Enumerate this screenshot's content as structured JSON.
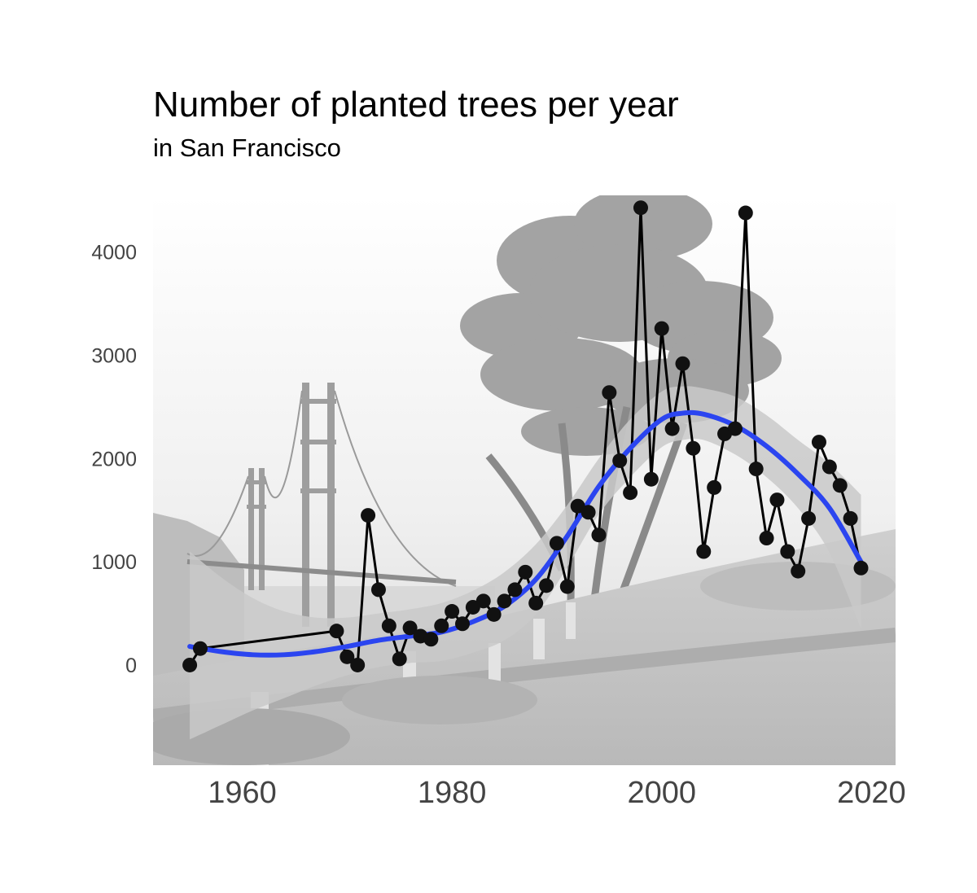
{
  "chart_data": {
    "type": "line",
    "title": "Number of planted trees per year",
    "subtitle": "in San Francisco",
    "xlabel": "",
    "ylabel": "",
    "xlim": [
      1951.5,
      2022.3
    ],
    "ylim": [
      -970,
      4550
    ],
    "x_ticks": [
      1960,
      1980,
      2000,
      2020
    ],
    "y_ticks": [
      0,
      1000,
      2000,
      3000,
      4000
    ],
    "grid": false,
    "legend": "none",
    "background": "grayscale photo of the Golden Gate Bridge and a cypress tree",
    "series": [
      {
        "points": [
          [
            1955,
            0
          ],
          [
            1956,
            160
          ],
          [
            1969,
            330
          ],
          [
            1970,
            80
          ],
          [
            1971,
            0
          ],
          [
            1972,
            1450
          ],
          [
            1973,
            730
          ],
          [
            1974,
            380
          ],
          [
            1975,
            60
          ],
          [
            1976,
            360
          ],
          [
            1977,
            280
          ],
          [
            1978,
            250
          ],
          [
            1979,
            380
          ],
          [
            1980,
            520
          ],
          [
            1981,
            400
          ],
          [
            1982,
            560
          ],
          [
            1983,
            620
          ],
          [
            1984,
            490
          ],
          [
            1985,
            620
          ],
          [
            1986,
            730
          ],
          [
            1987,
            900
          ],
          [
            1988,
            600
          ],
          [
            1989,
            770
          ],
          [
            1990,
            1180
          ],
          [
            1991,
            760
          ],
          [
            1992,
            1540
          ],
          [
            1993,
            1480
          ],
          [
            1994,
            1260
          ],
          [
            1995,
            2640
          ],
          [
            1996,
            1980
          ],
          [
            1997,
            1670
          ],
          [
            1998,
            4430
          ],
          [
            1999,
            1800
          ],
          [
            2000,
            3260
          ],
          [
            2001,
            2290
          ],
          [
            2002,
            2920
          ],
          [
            2003,
            2100
          ],
          [
            2004,
            1100
          ],
          [
            2005,
            1720
          ],
          [
            2006,
            2240
          ],
          [
            2007,
            2290
          ],
          [
            2008,
            4380
          ],
          [
            2009,
            1900
          ],
          [
            2010,
            1230
          ],
          [
            2011,
            1600
          ],
          [
            2012,
            1100
          ],
          [
            2013,
            910
          ],
          [
            2014,
            1420
          ],
          [
            2015,
            2160
          ],
          [
            2016,
            1920
          ],
          [
            2017,
            1740
          ],
          [
            2018,
            1420
          ],
          [
            2019,
            940
          ]
        ]
      }
    ],
    "smooth": {
      "points": [
        [
          1955,
          180
        ],
        [
          1958,
          130
        ],
        [
          1961,
          100
        ],
        [
          1964,
          100
        ],
        [
          1967,
          130
        ],
        [
          1970,
          180
        ],
        [
          1973,
          240
        ],
        [
          1976,
          280
        ],
        [
          1979,
          320
        ],
        [
          1982,
          420
        ],
        [
          1985,
          570
        ],
        [
          1988,
          830
        ],
        [
          1991,
          1250
        ],
        [
          1994,
          1730
        ],
        [
          1997,
          2100
        ],
        [
          2000,
          2380
        ],
        [
          2002,
          2440
        ],
        [
          2004,
          2430
        ],
        [
          2007,
          2320
        ],
        [
          2010,
          2120
        ],
        [
          2013,
          1850
        ],
        [
          2016,
          1520
        ],
        [
          2019,
          1000
        ]
      ],
      "band_upper": [
        [
          1955,
          1100
        ],
        [
          1958,
          850
        ],
        [
          1961,
          650
        ],
        [
          1964,
          520
        ],
        [
          1967,
          460
        ],
        [
          1970,
          460
        ],
        [
          1973,
          500
        ],
        [
          1976,
          540
        ],
        [
          1979,
          600
        ],
        [
          1982,
          720
        ],
        [
          1985,
          900
        ],
        [
          1988,
          1170
        ],
        [
          1991,
          1550
        ],
        [
          1994,
          2000
        ],
        [
          1997,
          2380
        ],
        [
          2000,
          2650
        ],
        [
          2002,
          2700
        ],
        [
          2004,
          2680
        ],
        [
          2007,
          2600
        ],
        [
          2010,
          2420
        ],
        [
          2013,
          2180
        ],
        [
          2016,
          1950
        ],
        [
          2019,
          1650
        ]
      ],
      "band_lower": [
        [
          1955,
          -720
        ],
        [
          1958,
          -580
        ],
        [
          1961,
          -440
        ],
        [
          1964,
          -320
        ],
        [
          1967,
          -200
        ],
        [
          1970,
          -100
        ],
        [
          1973,
          -20
        ],
        [
          1976,
          20
        ],
        [
          1979,
          40
        ],
        [
          1982,
          120
        ],
        [
          1985,
          240
        ],
        [
          1988,
          490
        ],
        [
          1991,
          950
        ],
        [
          1994,
          1460
        ],
        [
          1997,
          1820
        ],
        [
          2000,
          2110
        ],
        [
          2002,
          2180
        ],
        [
          2004,
          2180
        ],
        [
          2007,
          2040
        ],
        [
          2010,
          1820
        ],
        [
          2013,
          1520
        ],
        [
          2016,
          1090
        ],
        [
          2019,
          350
        ]
      ]
    },
    "colors": {
      "series_line": "#000000",
      "series_point": "#111111",
      "smooth_line": "#2b45f0",
      "smooth_band": "#c9c9c9",
      "tick_label": "#444444"
    }
  }
}
